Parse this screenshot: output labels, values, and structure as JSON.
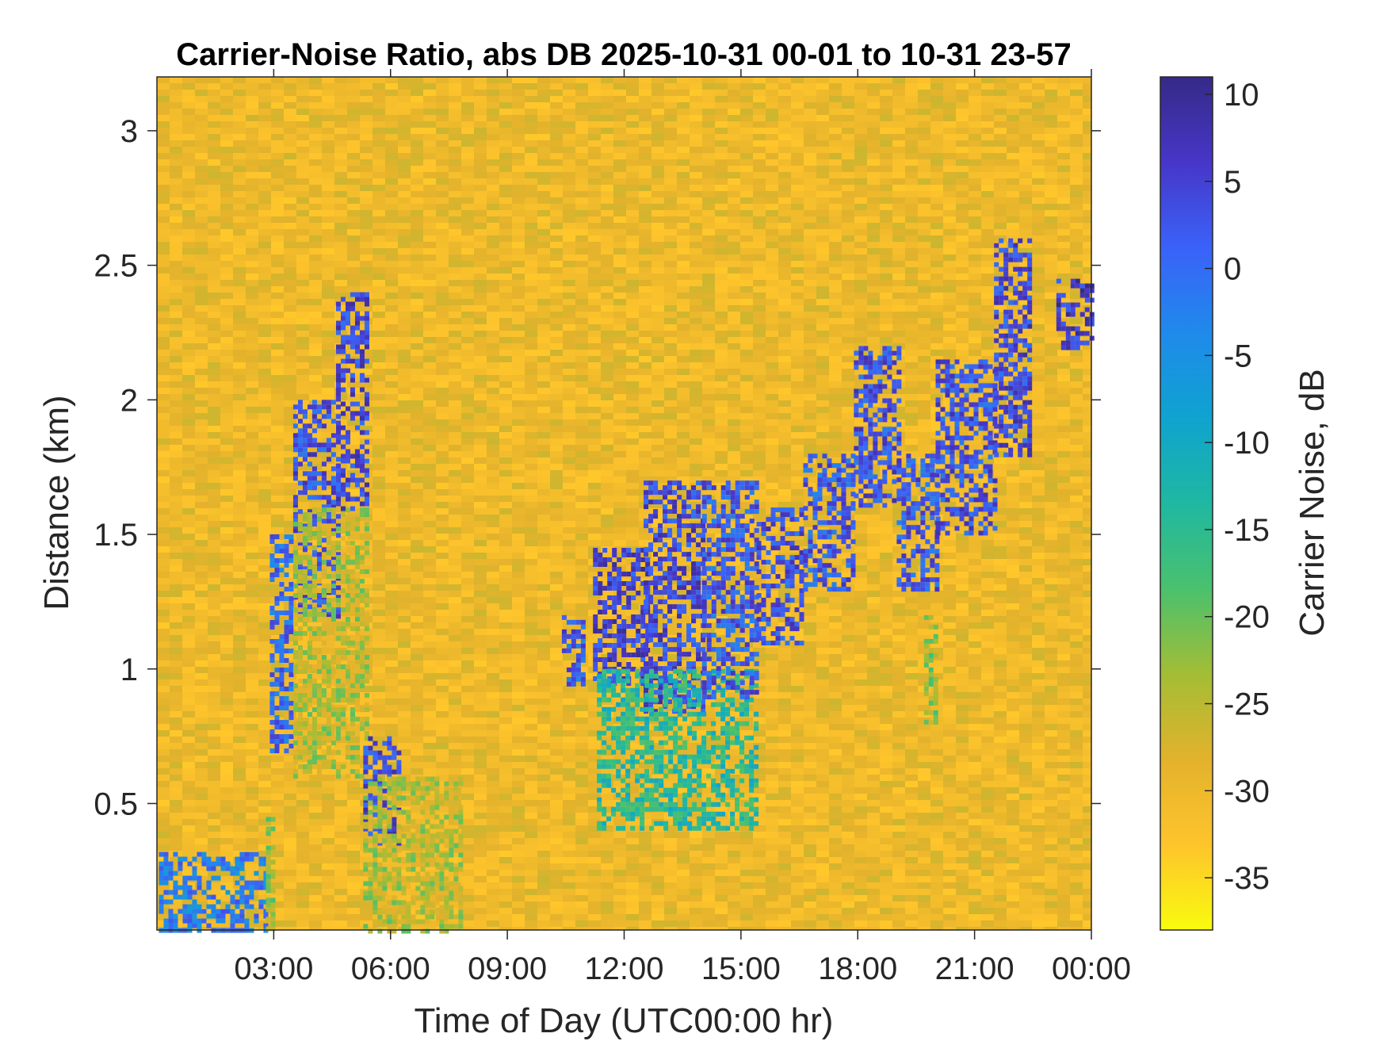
{
  "chart_data": {
    "type": "heatmap",
    "title": "Carrier-Noise Ratio, abs DB 2025-10-31 00-01 to 10-31 23-57",
    "xlabel": "Time of Day (UTC00:00 hr)",
    "ylabel": "Distance (km)",
    "colorbar_label": "Carrier Noise, dB",
    "x_unit": "hours",
    "xlim": [
      0.0,
      24.0
    ],
    "ylim": [
      0.03,
      3.2
    ],
    "clim": [
      -38,
      11
    ],
    "x_ticks": [
      3,
      6,
      9,
      12,
      15,
      18,
      21,
      24
    ],
    "x_tick_labels": [
      "03:00",
      "06:00",
      "09:00",
      "12:00",
      "15:00",
      "18:00",
      "21:00",
      "00:00"
    ],
    "y_ticks": [
      0.5,
      1,
      1.5,
      2,
      2.5,
      3
    ],
    "y_tick_labels": [
      "0.5",
      "1",
      "1.5",
      "2",
      "2.5",
      "3"
    ],
    "colorbar_ticks": [
      10,
      5,
      0,
      -5,
      -10,
      -15,
      -20,
      -25,
      -30,
      -35
    ],
    "colorbar_tick_labels": [
      "10",
      "5",
      "0",
      "-5",
      "-10",
      "-15",
      "-20",
      "-25",
      "-30",
      "-35"
    ],
    "colormap": [
      "#F9FB0E",
      "#FEC42C",
      "#E3B22C",
      "#A3BD35",
      "#4AC16D",
      "#1FB8A1",
      "#0FA3CF",
      "#1F8AEB",
      "#3A62F8",
      "#4736C8",
      "#352A87"
    ],
    "background_value": -30,
    "grid": false,
    "features": [
      {
        "x": [
          0.05,
          2.8
        ],
        "y": [
          0.03,
          0.32
        ],
        "value": -2
      },
      {
        "x": [
          2.8,
          3.0
        ],
        "y": [
          0.03,
          0.45
        ],
        "value": -22
      },
      {
        "x": [
          2.9,
          3.5
        ],
        "y": [
          0.7,
          1.5
        ],
        "value": 0
      },
      {
        "x": [
          3.5,
          4.6
        ],
        "y": [
          1.2,
          2.0
        ],
        "value": 3
      },
      {
        "x": [
          3.5,
          5.4
        ],
        "y": [
          0.6,
          1.6
        ],
        "value": -24
      },
      {
        "x": [
          4.6,
          5.4
        ],
        "y": [
          1.6,
          2.4
        ],
        "value": 4
      },
      {
        "x": [
          5.3,
          6.2
        ],
        "y": [
          0.35,
          0.75
        ],
        "value": 4
      },
      {
        "x": [
          5.3,
          7.8
        ],
        "y": [
          0.03,
          0.6
        ],
        "value": -24
      },
      {
        "x": [
          10.4,
          11.0
        ],
        "y": [
          0.95,
          1.2
        ],
        "value": 2
      },
      {
        "x": [
          11.2,
          12.6
        ],
        "y": [
          0.95,
          1.45
        ],
        "value": 5
      },
      {
        "x": [
          12.5,
          14.0
        ],
        "y": [
          0.85,
          1.7
        ],
        "value": 4
      },
      {
        "x": [
          11.3,
          15.4
        ],
        "y": [
          0.4,
          1.0
        ],
        "value": -14
      },
      {
        "x": [
          14.0,
          15.4
        ],
        "y": [
          0.9,
          1.7
        ],
        "value": 2
      },
      {
        "x": [
          15.4,
          16.6
        ],
        "y": [
          1.1,
          1.6
        ],
        "value": 3
      },
      {
        "x": [
          16.6,
          17.9
        ],
        "y": [
          1.3,
          1.8
        ],
        "value": 2
      },
      {
        "x": [
          17.9,
          19.0
        ],
        "y": [
          1.6,
          2.2
        ],
        "value": 3
      },
      {
        "x": [
          19.0,
          20.0
        ],
        "y": [
          1.3,
          1.8
        ],
        "value": 2
      },
      {
        "x": [
          19.7,
          20.0
        ],
        "y": [
          0.8,
          1.2
        ],
        "value": -22
      },
      {
        "x": [
          20.0,
          21.5
        ],
        "y": [
          1.5,
          2.15
        ],
        "value": 3
      },
      {
        "x": [
          21.5,
          22.4
        ],
        "y": [
          1.8,
          2.6
        ],
        "value": 4
      },
      {
        "x": [
          23.1,
          24.0
        ],
        "y": [
          2.2,
          2.45
        ],
        "value": 6
      }
    ]
  }
}
